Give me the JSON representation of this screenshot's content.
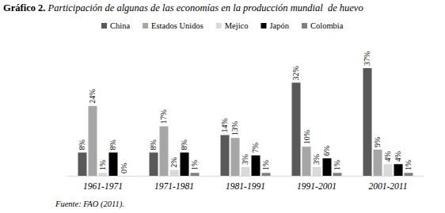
{
  "chart_data": {
    "type": "bar",
    "title": "Gráfico 2. Participación de algunas de las economías en la producción mundial  de huevo",
    "source": "Fuente: FAO (2011).",
    "categories": [
      "1961-1971",
      "1971-1981",
      "1981-1991",
      "1991-2001",
      "2001-2011"
    ],
    "series": [
      {
        "name": "China",
        "color": "#595959",
        "values": [
          8,
          8,
          14,
          32,
          37
        ],
        "value_labels": [
          "8%",
          "8%",
          "14%",
          "32%",
          "37%"
        ]
      },
      {
        "name": "Estados Unidos",
        "color": "#a6a6a6",
        "values": [
          24,
          17,
          13,
          10,
          9
        ],
        "value_labels": [
          "24%",
          "17%",
          "13%",
          "10%",
          "9%"
        ]
      },
      {
        "name": "Mejico",
        "color": "#d9d9d9",
        "values": [
          1,
          2,
          3,
          3,
          4
        ],
        "value_labels": [
          "1%",
          "2%",
          "3%",
          "3%",
          "4%"
        ]
      },
      {
        "name": "Japón",
        "color": "#000000",
        "values": [
          8,
          8,
          7,
          6,
          4
        ],
        "value_labels": [
          "8%",
          "8%",
          "7%",
          "6%",
          "4%"
        ]
      },
      {
        "name": "Colombia",
        "color": "#7f7f7f",
        "values": [
          0,
          1,
          1,
          1,
          1
        ],
        "value_labels": [
          "0%",
          "1%",
          "1%",
          "1%",
          "1%"
        ]
      }
    ],
    "ylim": [
      0,
      40
    ],
    "tick_labels": "x",
    "data_labels": true,
    "legend": "top",
    "grid": false
  }
}
